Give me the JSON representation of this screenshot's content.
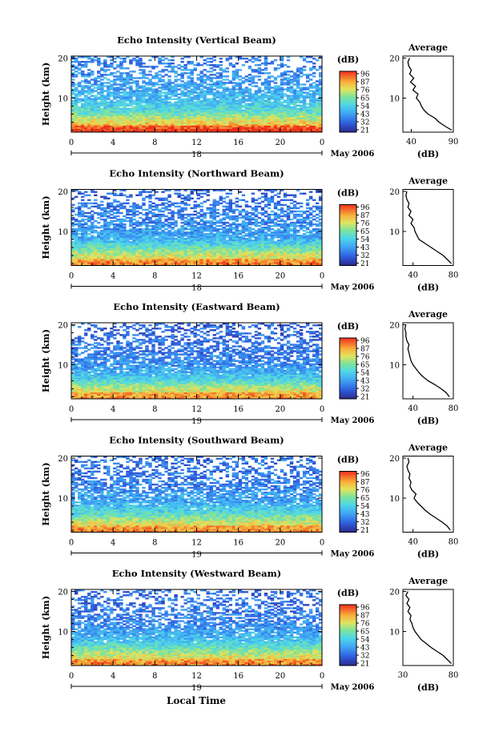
{
  "figure": {
    "xlabel": "Local Time",
    "date_label": "May 2006",
    "colorbar_unit": "(dB)",
    "colorbar_ticks": [
      "96",
      "87",
      "76",
      "65",
      "54",
      "43",
      "32",
      "21"
    ],
    "profile_title": "Average",
    "profile_xlabel": "(dB)",
    "ylabel": "Height (km)"
  },
  "chart_data": [
    {
      "type": "heatmap",
      "title": "Echo Intensity (Vertical Beam)",
      "ylabel": "Height (km)",
      "x_ticks": [
        "0",
        "4",
        "8",
        "12",
        "16",
        "20",
        "0"
      ],
      "y_ticks": [
        "20",
        "10"
      ],
      "day_label": "18",
      "xlim": [
        0,
        24
      ],
      "ylim": [
        1.5,
        20.5
      ],
      "color_range_db": [
        21,
        96
      ],
      "profile": {
        "xlim": [
          30,
          90
        ],
        "x_ticks": [
          "40",
          "90"
        ],
        "height_km": [
          2,
          3,
          4,
          5,
          6,
          7,
          8,
          9,
          10,
          11,
          12,
          13,
          14,
          15,
          16,
          17,
          18,
          19,
          20
        ],
        "mean_db": [
          88,
          80,
          73,
          68,
          60,
          55,
          52,
          50,
          46,
          48,
          42,
          45,
          39,
          43,
          38,
          40,
          37,
          36,
          38
        ]
      }
    },
    {
      "type": "heatmap",
      "title": "Echo Intensity (Northward Beam)",
      "ylabel": "Height (km)",
      "x_ticks": [
        "0",
        "4",
        "8",
        "12",
        "16",
        "20",
        "0"
      ],
      "y_ticks": [
        "20",
        "10"
      ],
      "day_label": "18",
      "xlim": [
        0,
        24
      ],
      "ylim": [
        1.5,
        20.5
      ],
      "color_range_db": [
        21,
        96
      ],
      "profile": {
        "xlim": [
          30,
          80
        ],
        "x_ticks": [
          "40",
          "80"
        ],
        "height_km": [
          2,
          3,
          4,
          5,
          6,
          7,
          8,
          9,
          10,
          11,
          12,
          13,
          14,
          15,
          16,
          17,
          18,
          19,
          20
        ],
        "mean_db": [
          78,
          74,
          70,
          64,
          58,
          52,
          46,
          44,
          42,
          41,
          38,
          40,
          36,
          38,
          35,
          36,
          34,
          33,
          34
        ]
      }
    },
    {
      "type": "heatmap",
      "title": "Echo Intensity (Eastward Beam)",
      "ylabel": "Height (km)",
      "x_ticks": [
        "0",
        "4",
        "8",
        "12",
        "16",
        "20",
        "0"
      ],
      "y_ticks": [
        "20",
        "10"
      ],
      "day_label": "19",
      "xlim": [
        0,
        24
      ],
      "ylim": [
        1.5,
        20.5
      ],
      "color_range_db": [
        21,
        96
      ],
      "profile": {
        "xlim": [
          30,
          80
        ],
        "x_ticks": [
          "40",
          "80"
        ],
        "height_km": [
          2,
          3,
          4,
          5,
          6,
          7,
          8,
          9,
          10,
          11,
          12,
          13,
          14,
          15,
          16,
          17,
          18,
          19,
          20
        ],
        "mean_db": [
          76,
          73,
          68,
          62,
          55,
          50,
          46,
          43,
          40,
          38,
          37,
          36,
          35,
          36,
          34,
          33,
          33,
          32,
          33
        ]
      }
    },
    {
      "type": "heatmap",
      "title": "Echo Intensity (Southward Beam)",
      "ylabel": "Height (km)",
      "x_ticks": [
        "0",
        "4",
        "8",
        "12",
        "16",
        "20",
        "0"
      ],
      "y_ticks": [
        "20",
        "10"
      ],
      "day_label": "19",
      "xlim": [
        0,
        24
      ],
      "ylim": [
        1.5,
        20.5
      ],
      "color_range_db": [
        21,
        96
      ],
      "profile": {
        "xlim": [
          30,
          80
        ],
        "x_ticks": [
          "40",
          "80"
        ],
        "height_km": [
          2,
          3,
          4,
          5,
          6,
          7,
          8,
          9,
          10,
          11,
          12,
          13,
          14,
          15,
          16,
          17,
          18,
          19,
          20
        ],
        "mean_db": [
          77,
          74,
          69,
          63,
          57,
          52,
          48,
          44,
          41,
          43,
          39,
          37,
          38,
          36,
          37,
          35,
          34,
          36,
          35
        ]
      }
    },
    {
      "type": "heatmap",
      "title": "Echo Intensity (Westward Beam)",
      "ylabel": "Height (km)",
      "x_ticks": [
        "0",
        "4",
        "8",
        "12",
        "16",
        "20",
        "0"
      ],
      "y_ticks": [
        "20",
        "10"
      ],
      "day_label": "19",
      "xlim": [
        0,
        24
      ],
      "ylim": [
        1.5,
        20.5
      ],
      "color_range_db": [
        21,
        96
      ],
      "profile": {
        "xlim": [
          30,
          80
        ],
        "x_ticks": [
          "30",
          "80"
        ],
        "height_km": [
          2,
          3,
          4,
          5,
          6,
          7,
          8,
          9,
          10,
          11,
          12,
          13,
          14,
          15,
          16,
          17,
          18,
          19,
          20
        ],
        "mean_db": [
          78,
          74,
          70,
          64,
          58,
          53,
          48,
          45,
          42,
          40,
          39,
          37,
          38,
          35,
          37,
          34,
          36,
          33,
          35
        ]
      }
    }
  ]
}
